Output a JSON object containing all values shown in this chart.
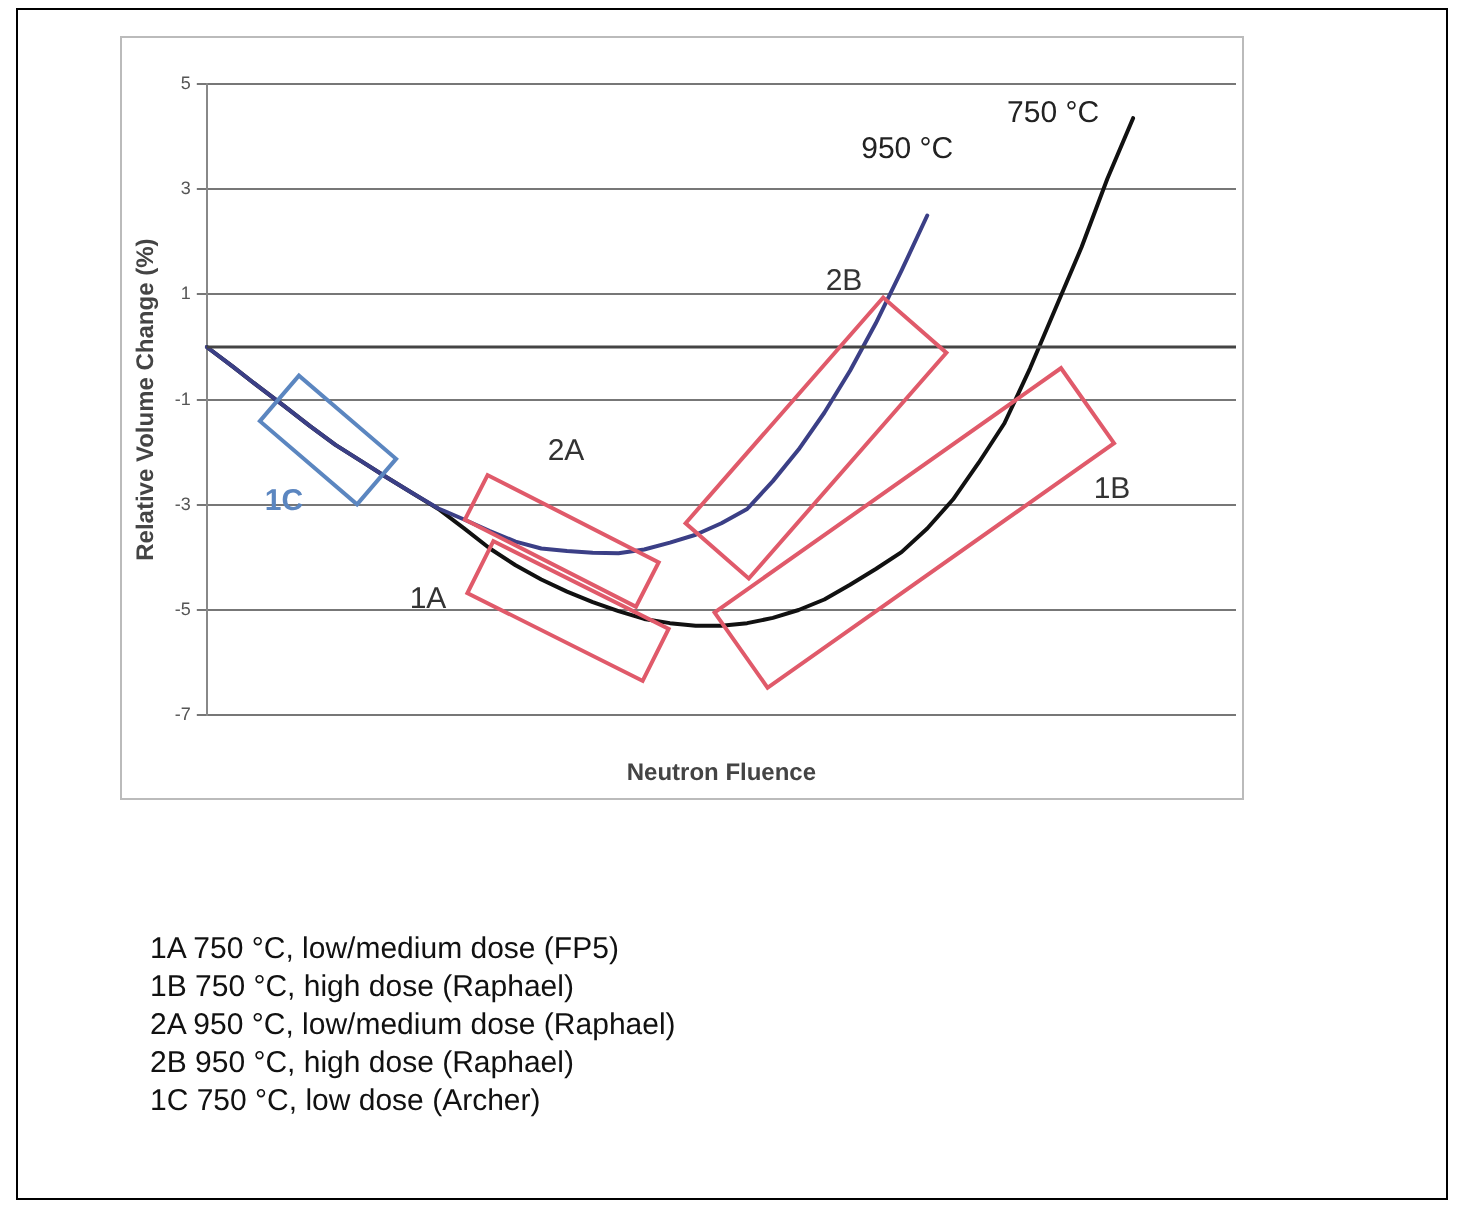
{
  "chart_data": {
    "type": "line",
    "xlabel": "Neutron Fluence",
    "ylabel": "Relative Volume Change (%)",
    "ylim": [
      -7,
      5
    ],
    "yticks": [
      -7,
      -5,
      -3,
      -1,
      1,
      3,
      5
    ],
    "tick_labels": "y",
    "grid": "y",
    "marker": "none",
    "line_style": "solid",
    "legend": false,
    "categories": [
      null,
      null,
      null,
      null,
      null,
      null,
      null,
      null,
      null,
      null,
      null,
      null,
      null,
      null,
      null,
      null,
      null,
      null,
      null,
      null,
      null,
      null,
      null,
      null,
      null,
      null,
      null,
      null,
      null,
      null,
      null,
      null,
      null,
      null,
      null,
      null,
      null,
      null,
      null,
      null,
      null
    ],
    "ref_lines": [
      {
        "axis": "y",
        "value": 0
      }
    ],
    "series": [
      {
        "name": "950 °C",
        "color": "#3b3f86",
        "values": [
          0,
          -0.37,
          -0.75,
          -1.12,
          -1.5,
          -1.86,
          -2.17,
          -2.48,
          -2.78,
          -3.07,
          -3.28,
          -3.5,
          -3.7,
          -3.83,
          -3.88,
          -3.91,
          -3.92,
          -3.85,
          -3.72,
          -3.57,
          -3.35,
          -3.08,
          -2.55,
          -1.95,
          -1.25,
          -0.45,
          0.45,
          1.45,
          2.5,
          null,
          null,
          null,
          null,
          null,
          null,
          null,
          null,
          null,
          null,
          null,
          null
        ]
      },
      {
        "name": "750 °C",
        "color": "#111111",
        "values": [
          0,
          -0.37,
          -0.75,
          -1.12,
          -1.5,
          -1.86,
          -2.17,
          -2.48,
          -2.78,
          -3.08,
          -3.45,
          -3.83,
          -4.15,
          -4.42,
          -4.65,
          -4.85,
          -5.02,
          -5.17,
          -5.25,
          -5.3,
          -5.3,
          -5.25,
          -5.15,
          -5.0,
          -4.8,
          -4.52,
          -4.22,
          -3.9,
          -3.45,
          -2.9,
          -2.2,
          -1.45,
          -0.4,
          0.75,
          1.9,
          3.2,
          4.35,
          null,
          null,
          null,
          null
        ]
      }
    ],
    "annotations": [
      "1C",
      "2A",
      "1A",
      "2B",
      "1B",
      "1A 750 °C, low/medium dose (FP5)",
      "1B 750 °C, high dose (Raphael)",
      "2A 950 °C, low/medium dose (Raphael)",
      "2B 950 °C, high dose (Raphael)",
      "1C 750 °C, low dose (Archer)"
    ]
  }
}
